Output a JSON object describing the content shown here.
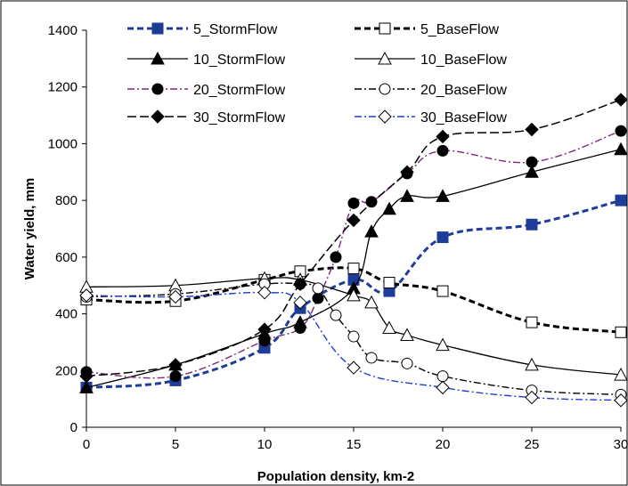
{
  "chart_data": {
    "type": "line",
    "title": "",
    "xlabel": "Population density, km-2",
    "ylabel": "Water yield, mm",
    "xlim": [
      0,
      30
    ],
    "ylim": [
      0,
      1400
    ],
    "xticks": [
      0,
      5,
      10,
      15,
      20,
      25,
      30
    ],
    "yticks": [
      0,
      200,
      400,
      600,
      800,
      1000,
      1200,
      1400
    ],
    "grid": false,
    "legend_position": "top",
    "series": [
      {
        "name": "5_StormFlow",
        "color": "#1f3c99",
        "dash": "dashed-bold",
        "marker": "filled-square",
        "x": [
          0,
          5,
          10,
          12,
          15,
          17,
          20,
          25,
          30
        ],
        "y": [
          140,
          165,
          280,
          420,
          520,
          480,
          670,
          715,
          800
        ]
      },
      {
        "name": "5_BaseFlow",
        "color": "#000000",
        "dash": "dashed-bold",
        "marker": "open-square",
        "x": [
          0,
          5,
          10,
          12,
          15,
          17,
          20,
          25,
          30
        ],
        "y": [
          450,
          445,
          520,
          550,
          560,
          510,
          480,
          370,
          335
        ]
      },
      {
        "name": "10_StormFlow",
        "color": "#000000",
        "dash": "solid",
        "marker": "filled-triangle",
        "x": [
          0,
          5,
          10,
          12,
          15,
          16,
          17,
          18,
          20,
          25,
          30
        ],
        "y": [
          140,
          220,
          330,
          370,
          490,
          690,
          770,
          815,
          815,
          900,
          980
        ]
      },
      {
        "name": "10_BaseFlow",
        "color": "#000000",
        "dash": "solid",
        "marker": "open-triangle",
        "x": [
          0,
          5,
          10,
          12,
          15,
          16,
          17,
          18,
          20,
          25,
          30
        ],
        "y": [
          495,
          500,
          525,
          520,
          465,
          440,
          350,
          325,
          290,
          220,
          185
        ]
      },
      {
        "name": "20_StormFlow",
        "color": "#7a2a7a",
        "dash": "dash-dot",
        "marker": "filled-circle",
        "x": [
          0,
          5,
          10,
          12,
          13,
          14,
          15,
          16,
          18,
          20,
          25,
          30
        ],
        "y": [
          195,
          180,
          305,
          350,
          455,
          600,
          790,
          795,
          895,
          975,
          935,
          1045
        ]
      },
      {
        "name": "20_BaseFlow",
        "color": "#000000",
        "dash": "dash-dot",
        "marker": "open-circle",
        "x": [
          0,
          5,
          10,
          12,
          13,
          14,
          15,
          16,
          18,
          20,
          25,
          30
        ],
        "y": [
          460,
          470,
          505,
          505,
          490,
          395,
          320,
          245,
          225,
          180,
          130,
          115
        ]
      },
      {
        "name": "30_StormFlow",
        "color": "#000000",
        "dash": "long-dash",
        "marker": "filled-diamond",
        "x": [
          0,
          5,
          10,
          12,
          15,
          18,
          20,
          25,
          30
        ],
        "y": [
          180,
          220,
          345,
          505,
          730,
          900,
          1025,
          1050,
          1155
        ]
      },
      {
        "name": "30_BaseFlow",
        "color": "#1f3cd6",
        "dash": "dash-dot",
        "marker": "open-diamond",
        "x": [
          0,
          5,
          10,
          12,
          15,
          20,
          25,
          30
        ],
        "y": [
          465,
          460,
          475,
          440,
          210,
          140,
          105,
          95
        ]
      }
    ]
  }
}
